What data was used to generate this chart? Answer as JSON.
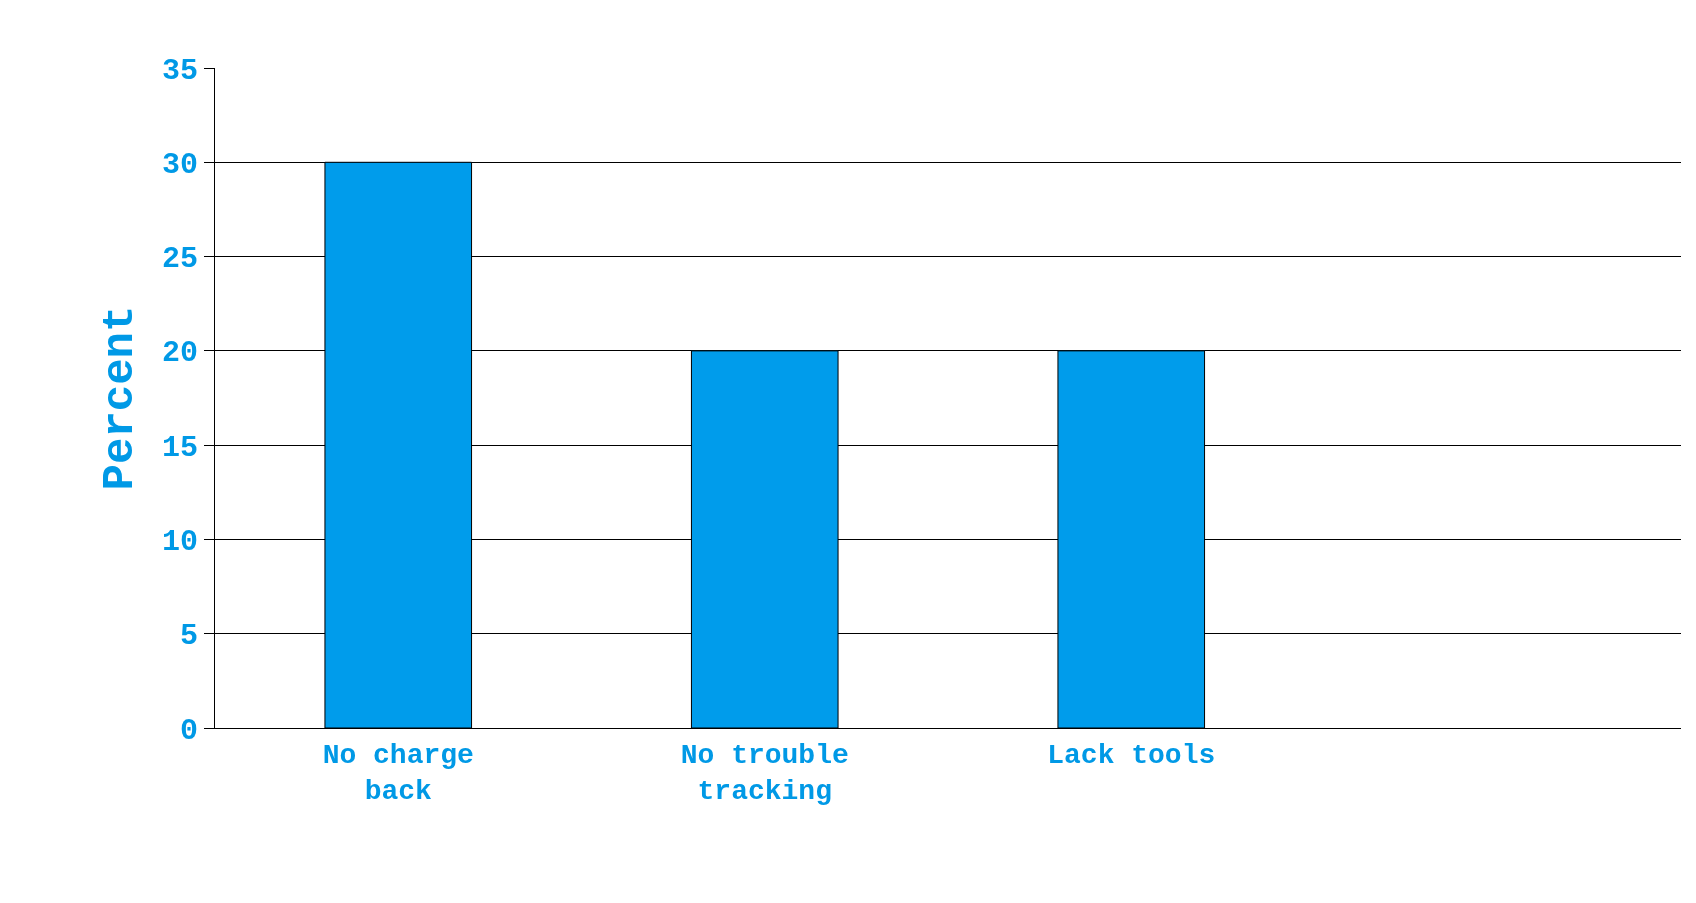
{
  "chart_data": {
    "type": "bar",
    "ylabel": "Percent",
    "categories": [
      "No charge back",
      "No trouble tracking",
      "Lack tools",
      null
    ],
    "values": [
      30,
      20,
      20,
      null
    ],
    "color": "#009ceb",
    "ylim": [
      0,
      35
    ],
    "yticks": [
      0,
      5,
      10,
      15,
      20,
      25,
      30,
      35
    ],
    "grid": "y",
    "legend": false
  }
}
